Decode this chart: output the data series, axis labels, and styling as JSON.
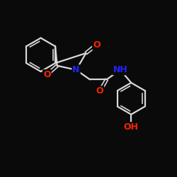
{
  "background_color": "#0a0a0a",
  "bond_color": "#d8d8d8",
  "atom_colors": {
    "O": "#ff2200",
    "N": "#2222ff",
    "C": "#d8d8d8"
  },
  "lw": 1.6,
  "lw2": 1.2,
  "fig_width": 2.5,
  "fig_height": 2.5,
  "dpi": 100,
  "xlim": [
    -3.8,
    3.8
  ],
  "ylim": [
    -3.2,
    3.2
  ]
}
